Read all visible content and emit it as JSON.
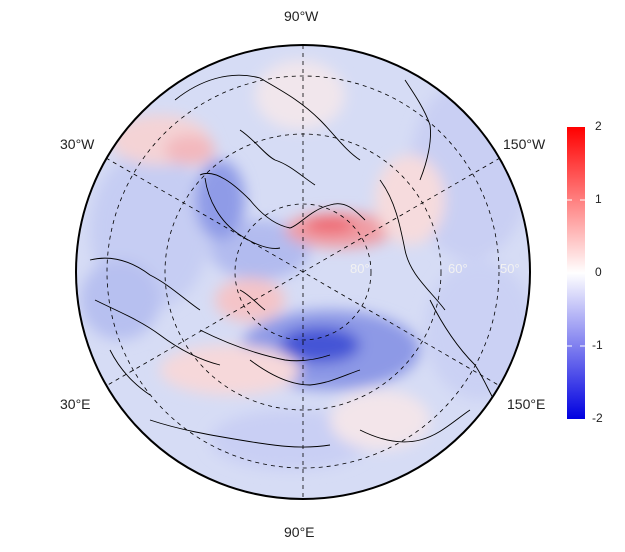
{
  "map": {
    "projection": "north-polar-stereographic",
    "longitude_labels": {
      "top": "90°W",
      "bottom": "90°E",
      "upper_left": "30°W",
      "lower_left": "30°E",
      "upper_right": "150°W",
      "lower_right": "150°E"
    },
    "latitude_labels": [
      "80°",
      "60°",
      "50°"
    ],
    "colors": {
      "negative": "#0000e0",
      "zero": "#ffffff",
      "positive": "#ff0000",
      "graticule": "#000000",
      "coastline": "#000000"
    }
  },
  "colorbar": {
    "ticks": [
      "2",
      "1",
      "0",
      "-1",
      "-2"
    ],
    "range": [
      -2,
      2
    ]
  }
}
